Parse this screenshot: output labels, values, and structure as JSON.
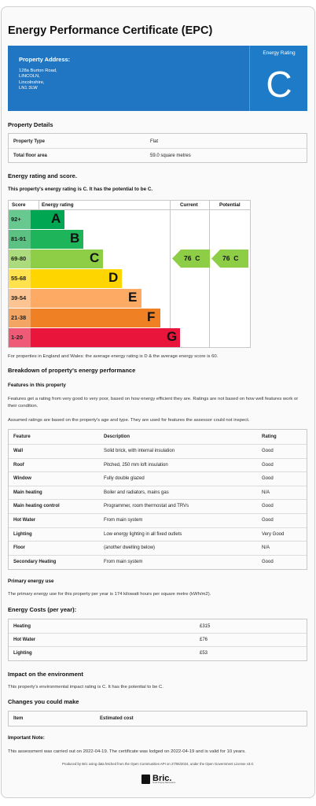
{
  "title": "Energy Performance Certificate (EPC)",
  "banner": {
    "address_label": "Property Address:",
    "address_lines": [
      "128a Burton Road,",
      "LINCOLN,",
      "Lincolnshire,",
      "LN1 3LW"
    ],
    "rating_label": "Energy Rating",
    "rating": "C",
    "color": "#2076c2"
  },
  "property_details": {
    "heading": "Property Details",
    "rows": [
      {
        "label": "Property Type",
        "value": "Flat"
      },
      {
        "label": "Total floor area",
        "value": "59.0 square metres"
      }
    ]
  },
  "energy_rating": {
    "heading": "Energy rating and score.",
    "statement": "This property's energy rating is C. It has the potential to be C.",
    "headers": {
      "score": "Score",
      "rating": "Energy rating",
      "current": "Current",
      "potential": "Potential"
    },
    "bands": [
      {
        "score": "92+",
        "letter": "A",
        "color": "#00a651",
        "score_color": "#67c98f",
        "fill": 0.23
      },
      {
        "score": "81-91",
        "letter": "B",
        "color": "#1eb45a",
        "score_color": "#5cc283",
        "fill": 0.31
      },
      {
        "score": "69-80",
        "letter": "C",
        "color": "#8dce46",
        "score_color": "#acdb7d",
        "fill": 0.39
      },
      {
        "score": "55-68",
        "letter": "D",
        "color": "#ffd500",
        "score_color": "#ffe24d",
        "fill": 0.47
      },
      {
        "score": "39-54",
        "letter": "E",
        "color": "#fdaa65",
        "score_color": "#fdc493",
        "fill": 0.55
      },
      {
        "score": "21-38",
        "letter": "F",
        "color": "#ef8023",
        "score_color": "#f3a564",
        "fill": 0.63
      },
      {
        "score": "1-20",
        "letter": "G",
        "color": "#e9153b",
        "score_color": "#ef5b76",
        "fill": 0.71
      }
    ],
    "current": {
      "score": "76",
      "letter": "C",
      "band_index": 2,
      "color": "#8dce46"
    },
    "potential": {
      "score": "76",
      "letter": "C",
      "band_index": 2,
      "color": "#8dce46"
    },
    "average_note": "For properties in England and Wales: the average energy rating is D & the average energy score is 60."
  },
  "breakdown": {
    "heading": "Breakdown of property's energy performance",
    "subheading": "Features in this property",
    "intro": "Features get a rating from very good to very poor, based on how energy efficient they are. Ratings are not based on how well features work or their condition.",
    "assumed": "Assumed ratings are based on the property's age and type. They are used for features the assessor could not inspect.",
    "headers": {
      "feature": "Feature",
      "description": "Description",
      "rating": "Rating"
    },
    "rows": [
      {
        "feature": "Wall",
        "description": "Solid brick, with internal insulation",
        "rating": "Good"
      },
      {
        "feature": "Roof",
        "description": "Pitched, 250 mm loft insulation",
        "rating": "Good"
      },
      {
        "feature": "Window",
        "description": "Fully double glazed",
        "rating": "Good"
      },
      {
        "feature": "Main heating",
        "description": "Boiler and radiators, mains gas",
        "rating": "N/A"
      },
      {
        "feature": "Main heating control",
        "description": "Programmer, room thermostat and TRVs",
        "rating": "Good"
      },
      {
        "feature": "Hot Water",
        "description": "From main system",
        "rating": "Good"
      },
      {
        "feature": "Lighting",
        "description": "Low energy lighting in all fixed outlets",
        "rating": "Very Good"
      },
      {
        "feature": "Floor",
        "description": "(another dwelling below)",
        "rating": "N/A"
      },
      {
        "feature": "Secondary Heating",
        "description": "From main system",
        "rating": "Good"
      }
    ]
  },
  "primary_energy": {
    "heading": "Primary energy use",
    "text": "The primary energy use for this property per year is 174 kilowatt hours per square metre (kWh/m2)."
  },
  "energy_costs": {
    "heading": "Energy Costs (per year):",
    "rows": [
      {
        "label": "Heating",
        "value": "£315"
      },
      {
        "label": "Hot Water",
        "value": "£76"
      },
      {
        "label": "Lighting",
        "value": "£53"
      }
    ]
  },
  "environment": {
    "heading": "Impact on the environment",
    "text": "This property's environmental impact rating is C. It has the potential to be C."
  },
  "changes": {
    "heading": "Changes you could make",
    "headers": {
      "item": "Item",
      "cost": "Estimated cost"
    }
  },
  "important": {
    "heading": "Important Note:",
    "text": "This assessment was carried out on 2022-04-19. The certificate was lodged on 2022-04-19 and is valid for 10 years."
  },
  "footer": "Produced by Bric using data fetched from the Open Communities API on 27/06/2024, under the Open Government License v3.0.",
  "logo": {
    "text": "Bric.",
    "tagline": "Smart Property Maintenance"
  }
}
